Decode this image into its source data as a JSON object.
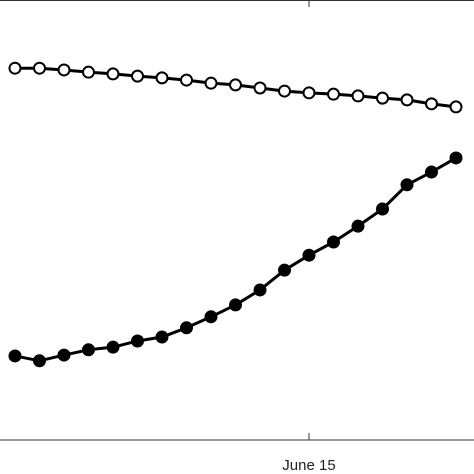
{
  "chart_data": {
    "type": "line",
    "categories": [
      null,
      null,
      null,
      null,
      null,
      null,
      null,
      null,
      null,
      null,
      null,
      null,
      "June 15",
      null,
      null,
      null,
      null,
      null,
      null
    ],
    "series": [
      {
        "marker": "open",
        "color": "#000000",
        "values": [
          84.5,
          84.5,
          84.1,
          83.6,
          83.2,
          82.7,
          82.3,
          81.8,
          81.1,
          80.7,
          80.0,
          79.3,
          78.9,
          78.6,
          78.2,
          77.7,
          77.3,
          76.4,
          75.7
        ]
      },
      {
        "marker": "filled",
        "color": "#000000",
        "values": [
          19.1,
          18.0,
          19.3,
          20.5,
          21.1,
          22.5,
          23.4,
          25.5,
          28.0,
          30.7,
          34.1,
          38.6,
          42.0,
          45.0,
          48.6,
          52.5,
          58.0,
          60.9,
          64.1
        ]
      }
    ],
    "ylim": [
      0,
      100
    ]
  }
}
